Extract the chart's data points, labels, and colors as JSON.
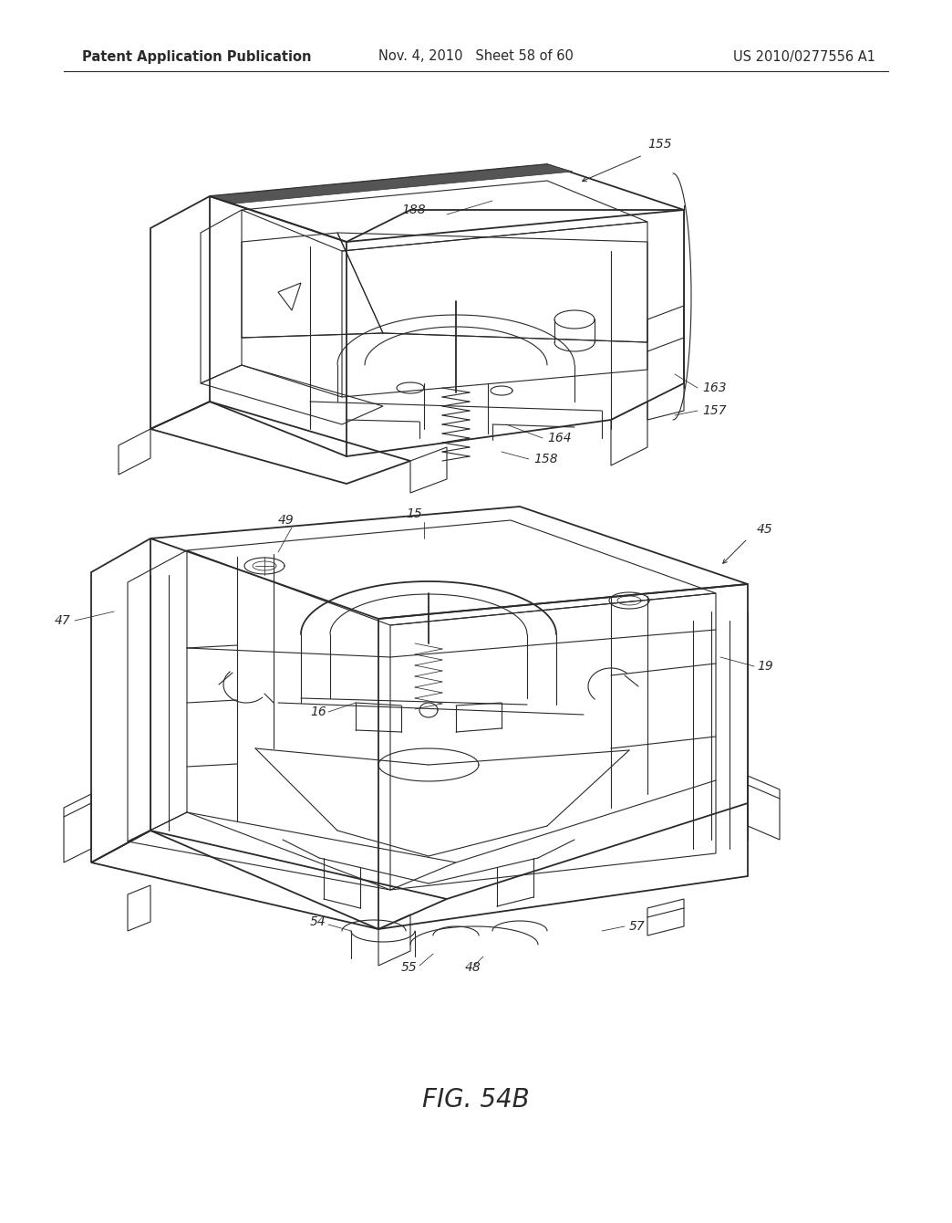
{
  "header_left": "Patent Application Publication",
  "header_mid": "Nov. 4, 2010   Sheet 58 of 60",
  "header_right": "US 2010/0277556 A1",
  "figure_label": "FIG. 54B",
  "background_color": "#ffffff",
  "line_color": "#2a2a2a",
  "header_fontsize": 10.5,
  "figure_label_fontsize": 20,
  "ref_fontsize": 10
}
